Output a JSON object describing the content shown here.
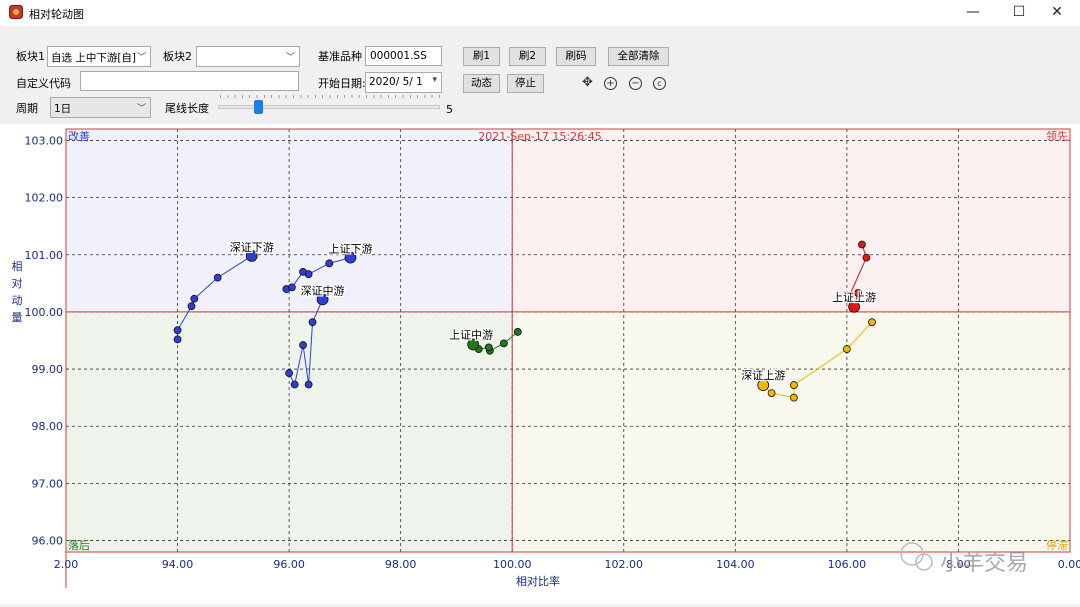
{
  "window": {
    "title": "相对轮动图",
    "minimize_glyph": "—",
    "maximize_glyph": "☐",
    "close_glyph": "✕",
    "icon": "app-logo-icon"
  },
  "controls": {
    "board1_label": "板块1",
    "board1_value": "自选 上中下游[自]",
    "board2_label": "板块2",
    "board2_value": "",
    "benchmark_label": "基准品种",
    "benchmark_value": "000001.SS",
    "custom_code_label": "自定义代码",
    "custom_code_value": "",
    "start_date_label": "开始日期:",
    "start_date_value": "2020/ 5/ 1",
    "period_label": "周期",
    "period_value": "1日",
    "tail_label": "尾线长度",
    "tail_value": "5",
    "tail_slider_fraction": 0.17,
    "btn_refresh1": "刷1",
    "btn_refresh2": "刷2",
    "btn_refresh_code": "刷码",
    "btn_clear_all": "全部清除",
    "btn_animate": "动态",
    "btn_stop": "停止",
    "tools": [
      "move-icon",
      "zoom-in-icon",
      "zoom-out-icon",
      "copyright-icon"
    ]
  },
  "chart_data": {
    "type": "scatter",
    "timestamp": "2021-Sep-17 15:26:45",
    "xlabel": "相对比率",
    "ylabel": "相对动量",
    "xlim": [
      92.0,
      110.0
    ],
    "ylim": [
      95.8,
      103.2
    ],
    "x_ticks": [
      "2.00",
      "94.00",
      "96.00",
      "98.00",
      "100.00",
      "102.00",
      "104.00",
      "106.00",
      "8.00",
      "0.00"
    ],
    "y_ticks": [
      "103.00",
      "102.00",
      "101.00",
      "100.00",
      "99.00",
      "98.00",
      "97.00",
      "96.00"
    ],
    "center": [
      100.0,
      100.0
    ],
    "quadrant_labels": {
      "top_left": "改善",
      "top_right": "领先",
      "bottom_left": "落后",
      "bottom_right": "停滞"
    },
    "quadrant_colors": {
      "top_left": "#f1f1fc",
      "top_right": "#fcf0f0",
      "bottom_left": "#eef3ec",
      "bottom_right": "#f9f8ef"
    },
    "series": [
      {
        "name": "深证下游",
        "color": "#2f3fd6",
        "x": [
          94.0,
          94.0,
          94.25,
          94.3,
          94.72,
          95.33
        ],
        "y": [
          99.52,
          99.68,
          100.1,
          100.23,
          100.6,
          100.98
        ]
      },
      {
        "name": "上证下游",
        "color": "#2f3fd6",
        "x": [
          95.95,
          96.05,
          96.25,
          96.35,
          96.72,
          97.1
        ],
        "y": [
          100.4,
          100.43,
          100.7,
          100.66,
          100.85,
          100.95
        ]
      },
      {
        "name": "深证中游",
        "color": "#2f3fd6",
        "x": [
          96.0,
          96.1,
          96.25,
          96.35,
          96.42,
          96.6
        ],
        "y": [
          98.93,
          98.73,
          99.42,
          98.73,
          99.82,
          100.22
        ]
      },
      {
        "name": "上证中游",
        "color": "#1f7a1f",
        "x": [
          100.1,
          99.85,
          99.6,
          99.58,
          99.4,
          99.3
        ],
        "y": [
          99.65,
          99.45,
          99.32,
          99.38,
          99.35,
          99.43
        ]
      },
      {
        "name": "上证上游",
        "color": "#e31515",
        "x": [
          106.27,
          106.35,
          106.04,
          106.2,
          106.13
        ],
        "y": [
          101.18,
          100.95,
          100.27,
          100.33,
          100.09
        ]
      },
      {
        "name": "深证上游",
        "color": "#f2b705",
        "x": [
          106.45,
          106.0,
          105.05,
          105.05,
          104.65,
          104.5
        ],
        "y": [
          99.82,
          99.35,
          98.72,
          98.5,
          98.58,
          98.72
        ]
      }
    ],
    "watermark": "小羊交易"
  }
}
